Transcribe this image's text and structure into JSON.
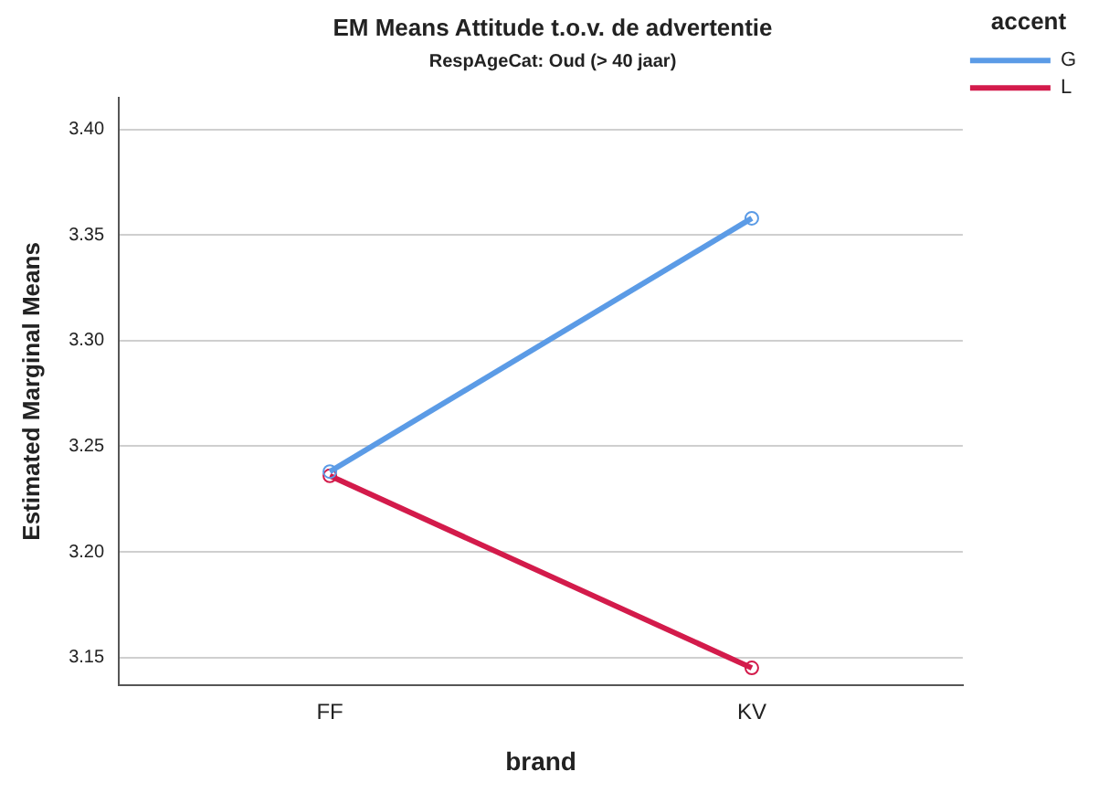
{
  "chart_data": {
    "type": "line",
    "title": "EM Means Attitude t.o.v. de advertentie",
    "subtitle": "RespAgeCat: Oud (> 40 jaar)",
    "xlabel": "brand",
    "ylabel": "Estimated Marginal Means",
    "legend_title": "accent",
    "categories": [
      "FF",
      "KV"
    ],
    "series": [
      {
        "name": "G",
        "color": "#5b9be6",
        "values": [
          3.238,
          3.358
        ]
      },
      {
        "name": "L",
        "color": "#d31b4b",
        "values": [
          3.236,
          3.145
        ]
      }
    ],
    "ylim": [
      3.137,
      3.415
    ],
    "yticks": [
      3.15,
      {
        "value": 3.2,
        "label": "3.20"
      },
      3.25,
      {
        "value": 3.3,
        "label": "3.30"
      },
      3.35,
      {
        "value": 3.4,
        "label": "3.40"
      }
    ],
    "grid": "y",
    "legend": "top right",
    "marker": "circle",
    "line_style": "solid"
  }
}
